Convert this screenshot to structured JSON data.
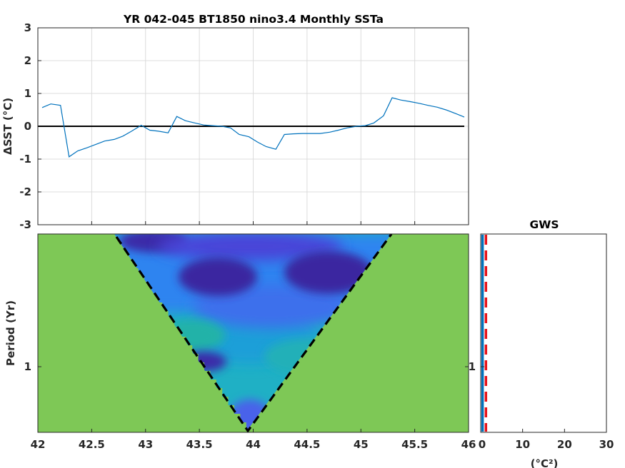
{
  "chart_data": [
    {
      "type": "line",
      "title": "YR 042-045 BT1850 nino3.4 Monthly SSTa",
      "ylabel": "ΔSST (°C)",
      "xlim": [
        42,
        46
      ],
      "ylim": [
        -3,
        3
      ],
      "yticks": [
        3,
        2,
        1,
        0,
        -1,
        -2,
        -3
      ],
      "grid": true,
      "zero_line": true,
      "series": [
        {
          "color": "#0072bd",
          "x": [
            42.04,
            42.12,
            42.21,
            42.29,
            42.37,
            42.46,
            42.54,
            42.62,
            42.71,
            42.79,
            42.87,
            42.96,
            43.04,
            43.12,
            43.21,
            43.29,
            43.37,
            43.46,
            43.54,
            43.62,
            43.71,
            43.79,
            43.87,
            43.96,
            44.04,
            44.12,
            44.21,
            44.29,
            44.37,
            44.46,
            44.54,
            44.62,
            44.71,
            44.79,
            44.87,
            44.96,
            45.04,
            45.12,
            45.21,
            45.29,
            45.37,
            45.46,
            45.54,
            45.62,
            45.71,
            45.79,
            45.87,
            45.96
          ],
          "y": [
            0.57,
            0.68,
            0.64,
            -0.93,
            -0.75,
            -0.65,
            -0.55,
            -0.45,
            -0.4,
            -0.3,
            -0.15,
            0.03,
            -0.12,
            -0.15,
            -0.2,
            0.3,
            0.17,
            0.1,
            0.04,
            0.02,
            0.0,
            -0.05,
            -0.25,
            -0.32,
            -0.48,
            -0.62,
            -0.7,
            -0.25,
            -0.23,
            -0.22,
            -0.22,
            -0.22,
            -0.18,
            -0.12,
            -0.05,
            0.0,
            0.02,
            0.1,
            0.32,
            0.87,
            0.8,
            0.75,
            0.7,
            0.64,
            0.58,
            0.5,
            0.4,
            0.28
          ]
        }
      ]
    },
    {
      "type": "heatmap",
      "ylabel": "Period (Yr)",
      "xlim": [
        42,
        46
      ],
      "xticks": [
        "42",
        "42.5",
        "43",
        "43.5",
        "44",
        "44.5",
        "45",
        "45.5",
        "46"
      ],
      "yticks": [
        "1"
      ],
      "background_color": "#7ec856",
      "cone_of_influence": "dashed black",
      "colormap": [
        "#3d26a8",
        "#4250e0",
        "#2f80f5",
        "#1a9fd8",
        "#17b5b4",
        "#3ebd8c",
        "#7ec856"
      ]
    },
    {
      "type": "line",
      "title": "GWS",
      "xlabel": "(°C²)",
      "xlim": [
        0,
        30
      ],
      "xticks": [
        "0",
        "10",
        "20",
        "30"
      ],
      "yticks": [
        "1"
      ],
      "series": [
        {
          "color": "#0072bd",
          "style": "solid",
          "value": 0.1
        },
        {
          "color": "#e8151b",
          "style": "dashed",
          "value": 0.9
        }
      ]
    }
  ]
}
